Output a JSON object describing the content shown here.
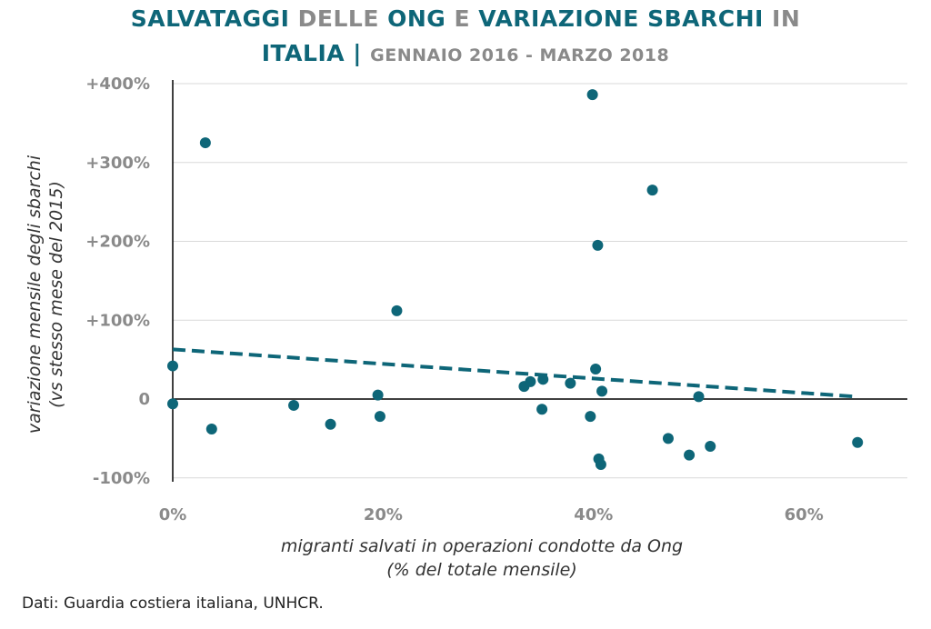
{
  "title": {
    "line1": [
      {
        "text": "SALVATAGGI ",
        "color": "teal"
      },
      {
        "text": "DELLE ",
        "color": "grey"
      },
      {
        "text": "ONG ",
        "color": "teal"
      },
      {
        "text": "E ",
        "color": "grey"
      },
      {
        "text": "VARIAZIONE SBARCHI ",
        "color": "teal"
      },
      {
        "text": "IN",
        "color": "grey"
      }
    ],
    "line2_main": "ITALIA | ",
    "line2_sub": "GENNAIO 2016 - MARZO 2018"
  },
  "source": "Dati: Guardia costiera italiana, UNHCR.",
  "chart_data": {
    "type": "scatter",
    "xlabel": [
      "migranti salvati in operazioni condotte da Ong",
      "(% del totale mensile)"
    ],
    "ylabel": [
      "variazione mensile degli sbarchi",
      "(vs stesso mese del 2015)"
    ],
    "xlim": [
      0,
      70
    ],
    "ylim": [
      -100,
      400
    ],
    "x_ticks": [
      {
        "v": 0,
        "label": "0%"
      },
      {
        "v": 20,
        "label": "20%"
      },
      {
        "v": 40,
        "label": "40%"
      },
      {
        "v": 60,
        "label": "60%"
      }
    ],
    "y_ticks": [
      {
        "v": 400,
        "label": "+400%"
      },
      {
        "v": 300,
        "label": "+300%"
      },
      {
        "v": 200,
        "label": "+200%"
      },
      {
        "v": 100,
        "label": "+100%"
      },
      {
        "v": 0,
        "label": "0"
      },
      {
        "v": -100,
        "label": "-100%"
      }
    ],
    "grid": "horizontal",
    "point_color": "#0e6678",
    "points": [
      [
        0,
        42
      ],
      [
        0,
        -6
      ],
      [
        3.1,
        325
      ],
      [
        3.7,
        -38
      ],
      [
        11.5,
        -8
      ],
      [
        15,
        -32
      ],
      [
        19.5,
        5
      ],
      [
        19.7,
        -22
      ],
      [
        21.3,
        112
      ],
      [
        33.4,
        16
      ],
      [
        34,
        22
      ],
      [
        35.2,
        25
      ],
      [
        35.1,
        -13
      ],
      [
        37.8,
        20
      ],
      [
        39.7,
        -22
      ],
      [
        39.9,
        386
      ],
      [
        40.2,
        38
      ],
      [
        40.4,
        195
      ],
      [
        40.5,
        -76
      ],
      [
        40.7,
        -83
      ],
      [
        40.8,
        10
      ],
      [
        45.6,
        265
      ],
      [
        47.1,
        -50
      ],
      [
        49.1,
        -71
      ],
      [
        50,
        3
      ],
      [
        51.1,
        -60
      ],
      [
        65.1,
        -55
      ]
    ],
    "trendline": {
      "x": [
        0,
        65
      ],
      "y": [
        63,
        3
      ],
      "style": "dashed"
    }
  }
}
